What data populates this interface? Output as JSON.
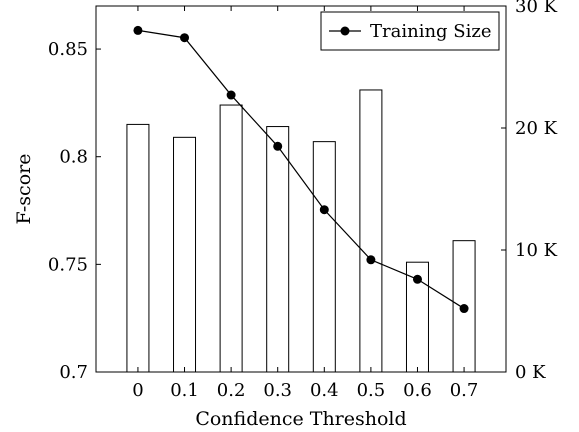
{
  "chart_data": {
    "type": "bar+line",
    "xlabel": "Confidence Threshold",
    "ylabel_left": "F-score",
    "ylabel_right": "",
    "categories": [
      "0",
      "0.1",
      "0.2",
      "0.3",
      "0.4",
      "0.5",
      "0.6",
      "0.7"
    ],
    "left_axis": {
      "ylim": [
        0.7,
        0.87
      ],
      "ticks": [
        0.7,
        0.75,
        0.8,
        0.85
      ],
      "tick_labels": [
        "0.7",
        "0.75",
        "0.8",
        "0.85"
      ]
    },
    "right_axis": {
      "ylim": [
        0,
        30000
      ],
      "ticks": [
        0,
        10000,
        20000,
        30000
      ],
      "tick_labels": [
        "0 K",
        "10 K",
        "20 K",
        "30 K"
      ]
    },
    "series": [
      {
        "kind": "bar",
        "axis": "left",
        "values": [
          0.815,
          0.809,
          0.824,
          0.814,
          0.807,
          0.831,
          0.751,
          0.761
        ]
      },
      {
        "name": "Training Size",
        "kind": "line",
        "axis": "right",
        "marker": "circle",
        "values": [
          28000,
          27400,
          22700,
          18500,
          13300,
          9200,
          7600,
          5200
        ]
      }
    ],
    "legend": {
      "position": "top-right",
      "entries": [
        "Training Size"
      ]
    },
    "grid": false
  }
}
